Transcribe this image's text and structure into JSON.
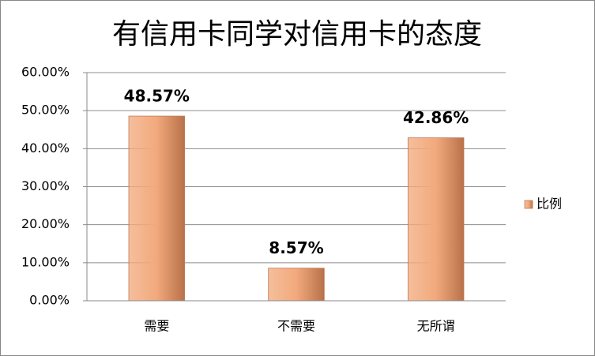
{
  "chart_data": {
    "type": "bar",
    "title": "有信用卡同学对信用卡的态度",
    "categories": [
      "需要",
      "不需要",
      "无所谓"
    ],
    "series": [
      {
        "name": "比例",
        "color": "#f2a97c",
        "values": [
          48.57,
          8.57,
          42.86
        ],
        "value_labels": [
          "48.57%",
          "8.57%",
          "42.86%"
        ]
      }
    ],
    "ylim": [
      0,
      60
    ],
    "yticks": [
      {
        "value": 0,
        "label": "0.00%"
      },
      {
        "value": 10,
        "label": "10.00%"
      },
      {
        "value": 20,
        "label": "20.00%"
      },
      {
        "value": 30,
        "label": "30.00%"
      },
      {
        "value": 40,
        "label": "40.00%"
      },
      {
        "value": 50,
        "label": "50.00%"
      },
      {
        "value": 60,
        "label": "60.00%"
      }
    ],
    "grid": true,
    "legend": "right"
  }
}
